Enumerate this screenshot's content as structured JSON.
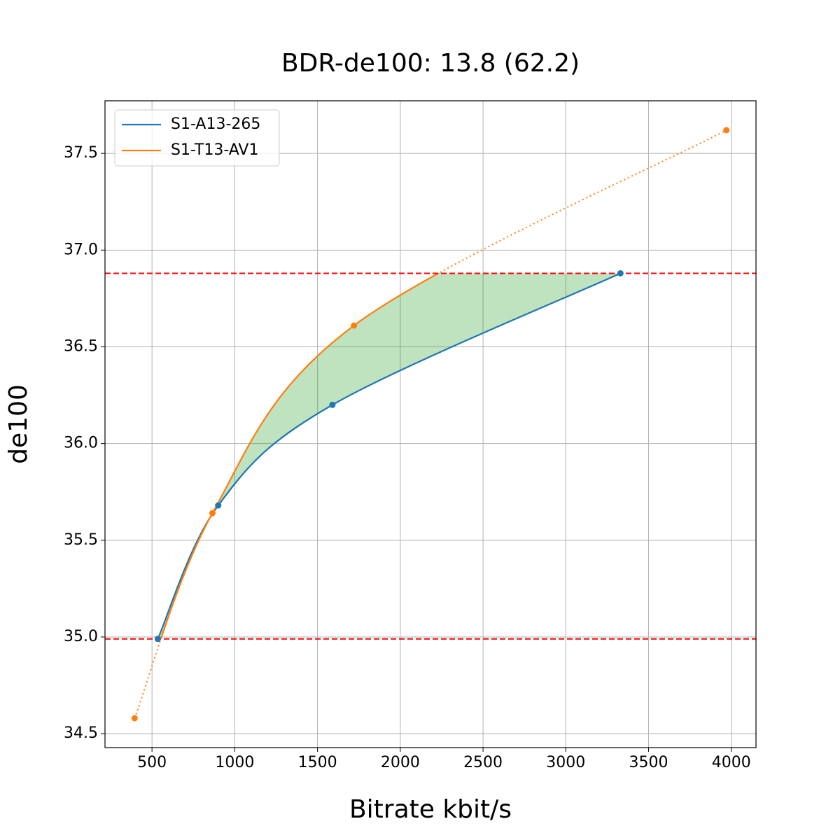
{
  "chart_data": {
    "type": "line",
    "title": "BDR-de100: 13.8 (62.2)",
    "x_label": "Bitrate kbit/s",
    "y_label": "de100",
    "series": [
      {
        "name": "S1-A13-265",
        "color": "#1f77b4",
        "x": [
          535,
          900,
          1590,
          3330
        ],
        "values": [
          34.99,
          35.68,
          36.2,
          36.88
        ]
      },
      {
        "name": "S1-T13-AV1",
        "color": "#ff7f0e",
        "x": [
          395,
          865,
          1720,
          3970
        ],
        "values": [
          34.58,
          35.64,
          36.61,
          37.62
        ]
      }
    ],
    "limits": [
      34.99,
      36.88
    ],
    "limit_color": "#ff0000",
    "area_color": "#2ca02c",
    "xlim": [
      216,
      4149
    ],
    "ylim": [
      34.428,
      37.772
    ],
    "xticks": [
      500,
      1000,
      1500,
      2000,
      2500,
      3000,
      3500,
      4000
    ],
    "yticks": [
      34.5,
      {
        "value": 35,
        "label": "35.0"
      },
      35.5,
      {
        "value": 36,
        "label": "36.0"
      },
      36.5,
      {
        "value": 37,
        "label": "37.0"
      },
      37.5
    ],
    "grid": true,
    "legend": "upper-left"
  }
}
